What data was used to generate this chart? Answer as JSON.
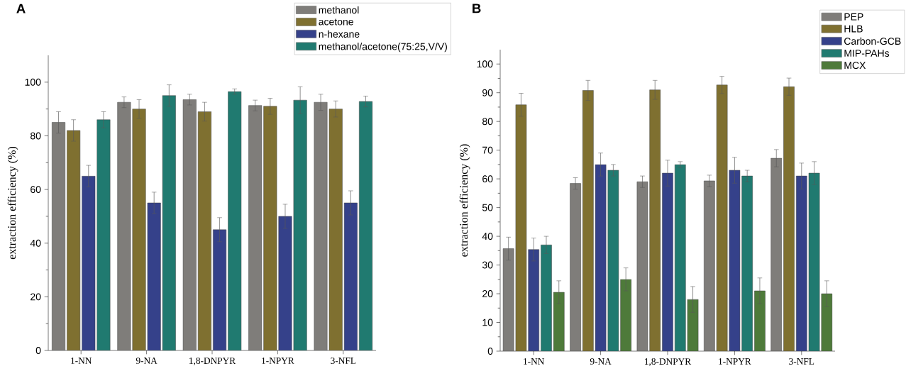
{
  "chart_data": [
    {
      "type": "bar",
      "title": "A",
      "ylabel": "extraction efficiency (%)",
      "categories": [
        "1-NN",
        "9-NA",
        "1,8-DNPYR",
        "1-NPYR",
        "3-NFL"
      ],
      "ylim": [
        0,
        110
      ],
      "yticks": [
        0,
        20,
        40,
        60,
        80,
        100
      ],
      "legend": "top right",
      "series": [
        {
          "name": "methanol",
          "color": "#7f7d7a",
          "values": [
            85,
            92.5,
            93.5,
            91.3,
            92.5
          ],
          "errors": [
            4,
            2,
            2,
            2,
            3
          ]
        },
        {
          "name": "acetone",
          "color": "#7f7030",
          "values": [
            82,
            90,
            89,
            91,
            90
          ],
          "errors": [
            4,
            3.5,
            3.5,
            3,
            3
          ]
        },
        {
          "name": "n-hexane",
          "color": "#35418a",
          "values": [
            65,
            55,
            45,
            50,
            55
          ],
          "errors": [
            4,
            4,
            4.5,
            4.5,
            4.5
          ]
        },
        {
          "name": "methanol/acetone(75:25,V/V)",
          "color": "#207a70",
          "values": [
            86,
            95,
            96.5,
            93.3,
            92.8
          ],
          "errors": [
            3,
            4,
            1,
            5,
            2
          ]
        }
      ]
    },
    {
      "type": "bar",
      "title": "B",
      "ylabel": "extraction efficiency (%)",
      "categories": [
        "1-NN",
        "9-NA",
        "1,8-DNPYR",
        "1-NPYR",
        "3-NFL"
      ],
      "ylim": [
        0,
        105
      ],
      "yticks": [
        0,
        10,
        20,
        30,
        40,
        50,
        60,
        70,
        80,
        90,
        100
      ],
      "legend": "top right",
      "series": [
        {
          "name": "PEP",
          "color": "#7f7d7a",
          "values": [
            35.7,
            58.4,
            59,
            59.3,
            67.2
          ],
          "errors": [
            4,
            2,
            2,
            2,
            3
          ]
        },
        {
          "name": "HLB",
          "color": "#7f7030",
          "values": [
            85.8,
            90.8,
            91,
            92.7,
            92.1
          ],
          "errors": [
            4,
            3.5,
            3.3,
            3,
            3
          ]
        },
        {
          "name": "Carbon-GCB",
          "color": "#35418a",
          "values": [
            35.4,
            65,
            62,
            63,
            61
          ],
          "errors": [
            4,
            4,
            4.5,
            4.5,
            4.5
          ]
        },
        {
          "name": "MIP-PAHs",
          "color": "#207a70",
          "values": [
            37,
            63,
            65,
            61,
            62
          ],
          "errors": [
            3,
            2,
            1,
            2,
            4
          ]
        },
        {
          "name": "MCX",
          "color": "#4e7a3a",
          "values": [
            20.5,
            25,
            18,
            21,
            20
          ],
          "errors": [
            4,
            4,
            4.5,
            4.5,
            4.5
          ]
        }
      ]
    }
  ]
}
